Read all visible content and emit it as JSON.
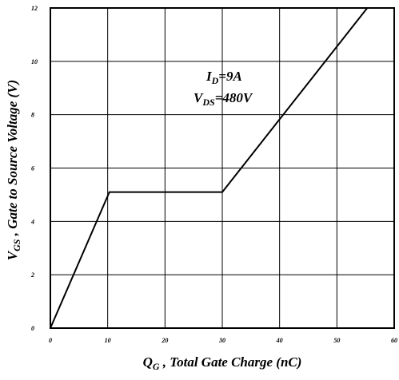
{
  "chart_data": {
    "type": "line",
    "xlabel": {
      "var": "Q",
      "sub": "G",
      "text": " , Total Gate Charge (nC)"
    },
    "ylabel": {
      "var": "V",
      "sub": "GS",
      "text": " , Gate to Source Voltage (V)"
    },
    "xlim": [
      0,
      60
    ],
    "ylim": [
      0,
      12
    ],
    "x_ticks": [
      0,
      10,
      20,
      30,
      40,
      50,
      60
    ],
    "y_ticks": [
      0,
      2,
      4,
      6,
      8,
      10,
      12
    ],
    "grid": true,
    "series": [
      {
        "x": [
          0,
          10.3,
          30.0,
          55.3
        ],
        "y": [
          0,
          5.1,
          5.1,
          12.0
        ]
      }
    ],
    "annotations": [
      {
        "var": "I",
        "sub": "D",
        "text": "=9A"
      },
      {
        "var": "V",
        "sub": "DS",
        "text": "=480V"
      }
    ],
    "colors": {
      "line": "#000000",
      "grid": "#000000",
      "background": "#ffffff"
    }
  }
}
